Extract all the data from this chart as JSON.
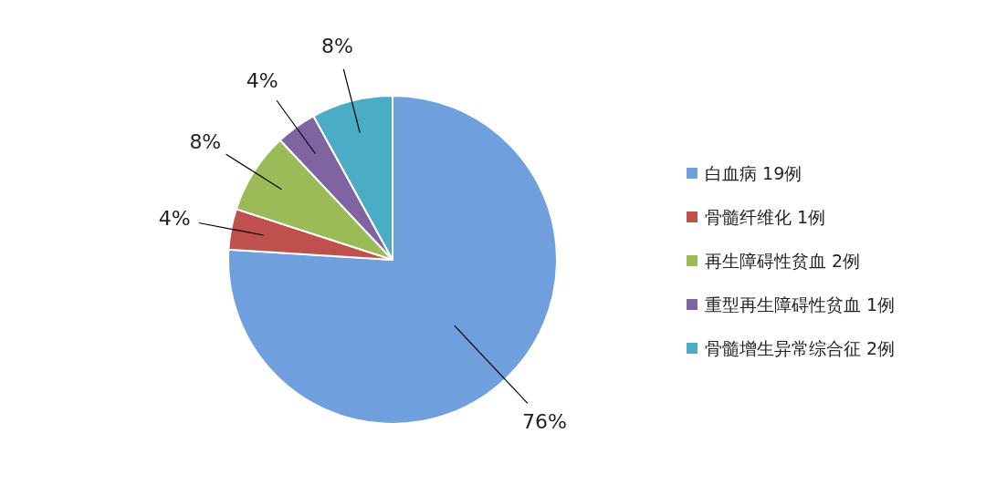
{
  "chart_data": {
    "type": "pie",
    "categories": [
      "白血病  19例",
      "骨髓纤维化  1例",
      "再生障碍性贫血  2例",
      "重型再生障碍性贫血  1例",
      "骨髓增生异常综合征  2例"
    ],
    "values": [
      76,
      4,
      8,
      4,
      8
    ],
    "colors": [
      "#6f9fdc",
      "#c0504d",
      "#9bbb59",
      "#8064a2",
      "#4bacc6"
    ],
    "value_labels": [
      "76%",
      "4%",
      "8%",
      "4%",
      "8%"
    ],
    "legend": "right"
  }
}
